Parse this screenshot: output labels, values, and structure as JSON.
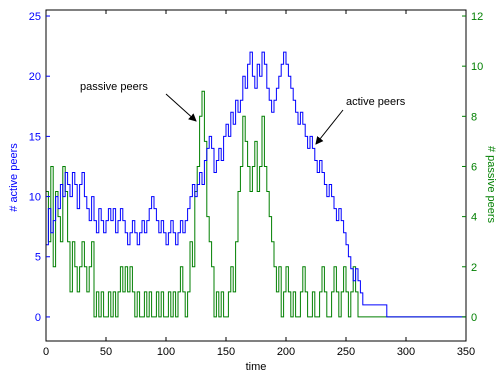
{
  "chart_data": {
    "type": "line",
    "title": "",
    "xlabel": "time",
    "ylabel_left": "# active peers",
    "ylabel_right": "# passive peers",
    "xlim": [
      0,
      350
    ],
    "ylim_left": [
      -2,
      25.5
    ],
    "ylim_right": [
      -0.96,
      12.24
    ],
    "x_ticks": [
      0,
      50,
      100,
      150,
      200,
      250,
      300,
      350
    ],
    "y_ticks_left": [
      0,
      5,
      10,
      15,
      20,
      25
    ],
    "y_ticks_right": [
      0,
      2,
      4,
      6,
      8,
      10,
      12
    ],
    "colors": {
      "left_axis": "#0000ff",
      "right_axis": "#007f00",
      "frame": "#000000"
    },
    "series": [
      {
        "name": "active peers",
        "axis": "left",
        "color": "#0000ff",
        "x": [
          0,
          2,
          4,
          6,
          8,
          10,
          12,
          14,
          16,
          18,
          20,
          22,
          24,
          26,
          28,
          30,
          32,
          34,
          36,
          38,
          40,
          42,
          44,
          46,
          48,
          50,
          52,
          54,
          56,
          58,
          60,
          62,
          64,
          66,
          68,
          70,
          72,
          74,
          76,
          78,
          80,
          82,
          84,
          86,
          88,
          90,
          92,
          94,
          96,
          98,
          100,
          102,
          104,
          106,
          108,
          110,
          112,
          114,
          116,
          118,
          120,
          122,
          124,
          126,
          128,
          130,
          132,
          134,
          136,
          138,
          140,
          142,
          144,
          146,
          148,
          150,
          152,
          154,
          156,
          158,
          160,
          162,
          164,
          166,
          168,
          170,
          172,
          174,
          176,
          178,
          180,
          182,
          184,
          186,
          188,
          190,
          192,
          194,
          196,
          198,
          200,
          202,
          204,
          206,
          208,
          210,
          212,
          214,
          216,
          218,
          220,
          222,
          224,
          226,
          228,
          230,
          232,
          234,
          236,
          238,
          240,
          242,
          244,
          246,
          248,
          250,
          252,
          254,
          256,
          258,
          260,
          262,
          264,
          266,
          268,
          270,
          272,
          274,
          276,
          278,
          280,
          282,
          284,
          300,
          350
        ],
        "values": [
          6,
          9,
          7,
          8,
          10,
          9,
          11,
          10,
          12,
          11,
          10,
          12,
          11,
          9,
          11,
          12,
          10,
          9,
          8,
          10,
          8,
          7,
          9,
          8,
          7,
          8,
          9,
          8,
          9,
          7,
          8,
          9,
          8,
          7,
          6,
          7,
          8,
          7,
          6,
          7,
          8,
          7,
          8,
          9,
          10,
          9,
          8,
          7,
          8,
          7,
          6,
          7,
          8,
          7,
          6,
          7,
          8,
          7,
          8,
          9,
          10,
          11,
          10,
          11,
          12,
          11,
          13,
          14,
          15,
          14,
          12,
          13,
          14,
          13,
          15,
          16,
          15,
          17,
          16,
          18,
          17,
          18,
          20,
          19,
          21,
          22,
          20,
          19,
          21,
          20,
          22,
          21,
          19,
          18,
          17,
          18,
          19,
          20,
          21,
          22,
          21,
          20,
          19,
          18,
          17,
          16,
          17,
          16,
          15,
          14,
          15,
          14,
          13,
          12,
          13,
          12,
          11,
          10,
          11,
          10,
          9,
          8,
          9,
          8,
          7,
          6,
          5,
          4,
          3,
          4,
          3,
          2,
          1,
          1,
          1,
          1,
          1,
          1,
          1,
          1,
          1,
          1,
          0,
          0,
          0
        ]
      },
      {
        "name": "passive peers",
        "axis": "right",
        "color": "#007f00",
        "x": [
          0,
          2,
          4,
          6,
          8,
          10,
          12,
          14,
          16,
          18,
          20,
          22,
          24,
          26,
          28,
          30,
          32,
          34,
          36,
          38,
          40,
          42,
          44,
          46,
          48,
          50,
          52,
          54,
          56,
          58,
          60,
          62,
          64,
          66,
          68,
          70,
          72,
          74,
          76,
          78,
          80,
          82,
          84,
          86,
          88,
          90,
          92,
          94,
          96,
          98,
          100,
          102,
          104,
          106,
          108,
          110,
          112,
          114,
          116,
          118,
          120,
          122,
          124,
          126,
          128,
          130,
          132,
          134,
          136,
          138,
          140,
          142,
          144,
          146,
          148,
          150,
          152,
          154,
          156,
          158,
          160,
          162,
          164,
          166,
          168,
          170,
          172,
          174,
          176,
          178,
          180,
          182,
          184,
          186,
          188,
          190,
          192,
          194,
          196,
          198,
          200,
          202,
          204,
          206,
          208,
          210,
          212,
          214,
          216,
          218,
          220,
          222,
          224,
          226,
          228,
          230,
          232,
          234,
          236,
          238,
          240,
          242,
          244,
          246,
          248,
          250,
          252,
          254,
          256,
          258,
          260,
          262,
          264,
          266,
          268,
          270,
          272,
          274,
          276,
          278,
          280,
          282,
          284,
          300,
          350
        ],
        "values": [
          5,
          3,
          6,
          2,
          5,
          4,
          3,
          6,
          5,
          3,
          1,
          3,
          2,
          1,
          2,
          3,
          2,
          1,
          2,
          3,
          0,
          1,
          0,
          1,
          0,
          0,
          1,
          0,
          1,
          0,
          1,
          2,
          1,
          2,
          1,
          2,
          1,
          0,
          1,
          0,
          0,
          1,
          0,
          1,
          0,
          0,
          1,
          0,
          1,
          0,
          0,
          1,
          0,
          1,
          0,
          1,
          2,
          1,
          0,
          1,
          3,
          2,
          5,
          6,
          8,
          9,
          7,
          4,
          3,
          2,
          0,
          1,
          0,
          1,
          0,
          0,
          1,
          2,
          1,
          3,
          5,
          6,
          8,
          7,
          6,
          5,
          6,
          7,
          5,
          6,
          8,
          6,
          5,
          4,
          3,
          2,
          1,
          2,
          0,
          1,
          2,
          1,
          0,
          1,
          0,
          0,
          1,
          2,
          1,
          0,
          0,
          1,
          0,
          0,
          1,
          2,
          1,
          0,
          0,
          1,
          2,
          1,
          0,
          1,
          2,
          1,
          0,
          1,
          2,
          1,
          0,
          0,
          0,
          0,
          0,
          0,
          0,
          0,
          0,
          0,
          0,
          0,
          0,
          0,
          0
        ]
      }
    ],
    "annotations": [
      {
        "text": "passive peers",
        "target_series": "passive peers"
      },
      {
        "text": "active peers",
        "target_series": "active peers"
      }
    ]
  }
}
